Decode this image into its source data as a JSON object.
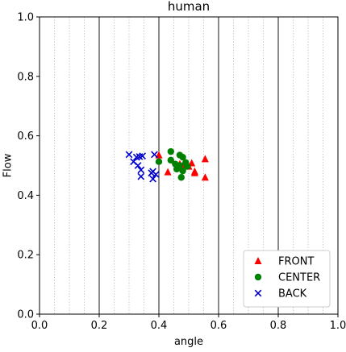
{
  "chart_data": {
    "type": "scatter",
    "title": "human",
    "xlabel": "angle",
    "ylabel": "Flow",
    "xlim": [
      0.0,
      1.0
    ],
    "ylim": [
      0.0,
      1.0
    ],
    "xticks": [
      "0.0",
      "0.2",
      "0.4",
      "0.6",
      "0.8",
      "1.0"
    ],
    "yticks": [
      "0.0",
      "0.2",
      "0.4",
      "0.6",
      "0.8",
      "1.0"
    ],
    "x_major_gridlines": [
      0.2,
      0.4,
      0.6,
      0.8
    ],
    "x_minor_gridlines": [
      0.05,
      0.1,
      0.15,
      0.25,
      0.3,
      0.35,
      0.45,
      0.5,
      0.55,
      0.65,
      0.7,
      0.75,
      0.85,
      0.9,
      0.95
    ],
    "grid": "vertical only",
    "legend_position": "lower right",
    "series": [
      {
        "name": "FRONT",
        "marker": "triangle",
        "color": "#ff0000",
        "points": [
          {
            "x": 0.4,
            "y": 0.535
          },
          {
            "x": 0.43,
            "y": 0.478
          },
          {
            "x": 0.47,
            "y": 0.505
          },
          {
            "x": 0.48,
            "y": 0.5
          },
          {
            "x": 0.5,
            "y": 0.497
          },
          {
            "x": 0.51,
            "y": 0.508
          },
          {
            "x": 0.52,
            "y": 0.475
          },
          {
            "x": 0.52,
            "y": 0.48
          },
          {
            "x": 0.555,
            "y": 0.522
          },
          {
            "x": 0.555,
            "y": 0.46
          }
        ]
      },
      {
        "name": "CENTER",
        "marker": "circle",
        "color": "#008000",
        "points": [
          {
            "x": 0.4,
            "y": 0.513
          },
          {
            "x": 0.44,
            "y": 0.547
          },
          {
            "x": 0.44,
            "y": 0.518
          },
          {
            "x": 0.455,
            "y": 0.505
          },
          {
            "x": 0.46,
            "y": 0.488
          },
          {
            "x": 0.47,
            "y": 0.535
          },
          {
            "x": 0.47,
            "y": 0.5
          },
          {
            "x": 0.475,
            "y": 0.46
          },
          {
            "x": 0.48,
            "y": 0.528
          },
          {
            "x": 0.48,
            "y": 0.482
          },
          {
            "x": 0.49,
            "y": 0.51
          },
          {
            "x": 0.495,
            "y": 0.497
          }
        ]
      },
      {
        "name": "BACK",
        "marker": "x",
        "color": "#0000cc",
        "points": [
          {
            "x": 0.3,
            "y": 0.537
          },
          {
            "x": 0.315,
            "y": 0.513
          },
          {
            "x": 0.325,
            "y": 0.528
          },
          {
            "x": 0.33,
            "y": 0.5
          },
          {
            "x": 0.335,
            "y": 0.53
          },
          {
            "x": 0.34,
            "y": 0.485
          },
          {
            "x": 0.345,
            "y": 0.532
          },
          {
            "x": 0.34,
            "y": 0.463
          },
          {
            "x": 0.375,
            "y": 0.475
          },
          {
            "x": 0.38,
            "y": 0.455
          },
          {
            "x": 0.38,
            "y": 0.48
          },
          {
            "x": 0.385,
            "y": 0.537
          },
          {
            "x": 0.39,
            "y": 0.47
          }
        ]
      }
    ]
  }
}
